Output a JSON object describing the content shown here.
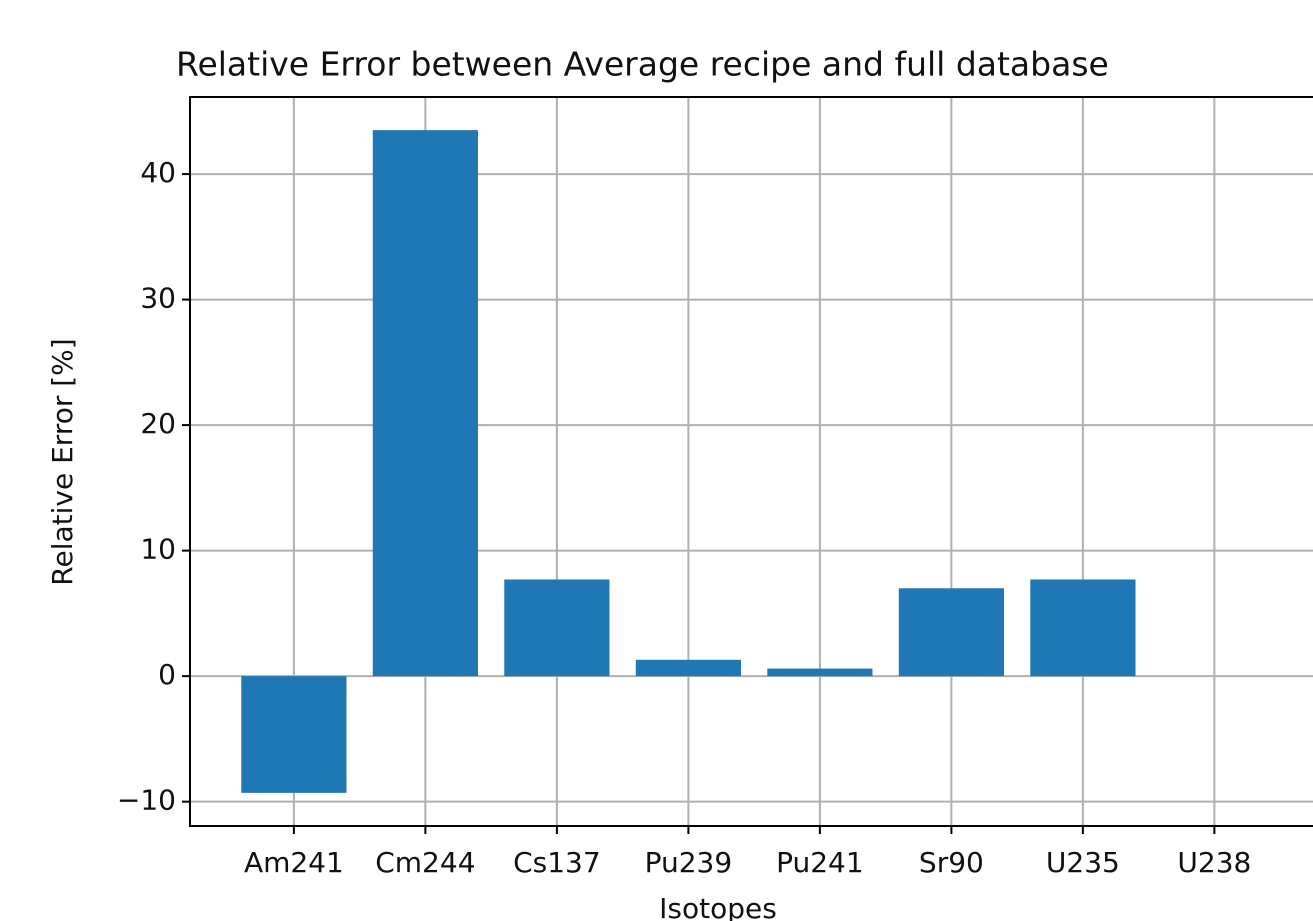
{
  "chart_data": {
    "type": "bar",
    "title": "Relative Error between Average recipe and full database",
    "x_label": "Isotopes",
    "y_label": "Relative Error [%]",
    "categories": [
      "Am241",
      "Cm244",
      "Cs137",
      "Pu239",
      "Pu241",
      "Sr90",
      "U235",
      "U238"
    ],
    "values": [
      -9.3,
      43.5,
      7.7,
      1.3,
      0.6,
      7.0,
      7.7,
      0
    ],
    "color": "#1f77b4",
    "ylim": [
      -11.94,
      46.14
    ],
    "yticks": [
      {
        "value": -10,
        "label": "−10"
      },
      0,
      10,
      20,
      30,
      40
    ],
    "grid": true
  }
}
